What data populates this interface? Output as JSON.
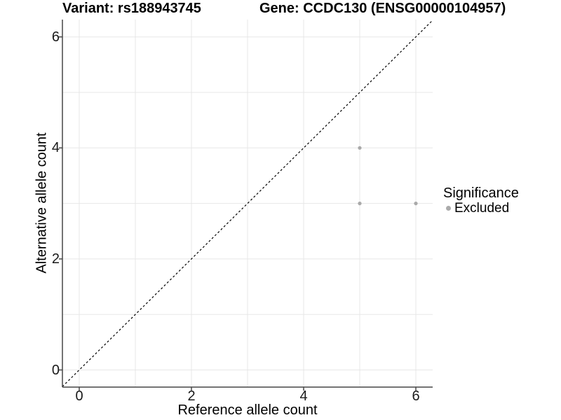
{
  "chart_data": {
    "type": "scatter",
    "title_left": "Variant: rs188943745",
    "title_right": "Gene: CCDC130 (ENSG00000104957)",
    "xlabel": "Reference allele count",
    "ylabel": "Alternative allele count",
    "xlim": [
      -0.3,
      6.3
    ],
    "ylim": [
      -0.3,
      6.3
    ],
    "x_tick_values": [
      0,
      2,
      4,
      6
    ],
    "y_tick_values": [
      0,
      2,
      4,
      6
    ],
    "grid_values": [
      0,
      1,
      2,
      3,
      4,
      5,
      6
    ],
    "grid": true,
    "points": [
      {
        "x": 5,
        "y": 4,
        "significance": "Excluded"
      },
      {
        "x": 5,
        "y": 3,
        "significance": "Excluded"
      },
      {
        "x": 6,
        "y": 3,
        "significance": "Excluded"
      }
    ],
    "identity_line": {
      "style": "dashed",
      "from": [
        -0.3,
        -0.3
      ],
      "to": [
        6.3,
        6.3
      ],
      "color": "#000000"
    },
    "legend": {
      "title": "Significance",
      "position": "right",
      "items": [
        {
          "label": "Excluded",
          "color": "#ababab"
        }
      ]
    },
    "colors": {
      "point": "#a9a9a9",
      "grid": "#e7e7e7",
      "axis": "#474747",
      "tick_text": "#1a1a1a",
      "background": "#ffffff"
    }
  }
}
